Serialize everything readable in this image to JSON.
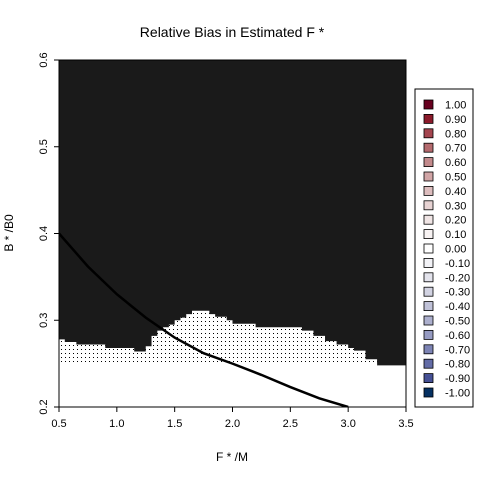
{
  "chart_data": {
    "type": "heatmap",
    "title": "Relative Bias in Estimated F *",
    "xlabel": "F * /M",
    "ylabel": "B * /B0",
    "xlim": [
      0.5,
      3.5
    ],
    "ylim": [
      0.2,
      0.6
    ],
    "x_ticks": [
      0.5,
      1.0,
      1.5,
      2.0,
      2.5,
      3.0,
      3.5
    ],
    "x_tick_labels": [
      "0.5",
      "1.0",
      "1.5",
      "2.0",
      "2.5",
      "3.0",
      "3.5"
    ],
    "y_ticks": [
      0.2,
      0.3,
      0.4,
      0.5,
      0.6
    ],
    "y_tick_labels": [
      "0.2",
      "0.3",
      "0.4",
      "0.5",
      "0.6"
    ],
    "legend": {
      "placement": "right",
      "entries": [
        {
          "label": "1.00",
          "color": "#67001F"
        },
        {
          "label": "0.90",
          "color": "#8B1A2B"
        },
        {
          "label": "0.80",
          "color": "#A4454F"
        },
        {
          "label": "0.70",
          "color": "#B46A6E"
        },
        {
          "label": "0.60",
          "color": "#C38A8C"
        },
        {
          "label": "0.50",
          "color": "#D1A5A6"
        },
        {
          "label": "0.40",
          "color": "#DDBDBE"
        },
        {
          "label": "0.30",
          "color": "#E7D3D3"
        },
        {
          "label": "0.20",
          "color": "#F0E5E5"
        },
        {
          "label": "0.10",
          "color": "#F8F3F3"
        },
        {
          "label": "0.00",
          "color": "#FFFFFF"
        },
        {
          "label": "-0.10",
          "color": "#F2F2F6"
        },
        {
          "label": "-0.20",
          "color": "#E3E3EC"
        },
        {
          "label": "-0.30",
          "color": "#D2D3E2"
        },
        {
          "label": "-0.40",
          "color": "#C0C2D8"
        },
        {
          "label": "-0.50",
          "color": "#ACAFCD"
        },
        {
          "label": "-0.60",
          "color": "#969BC2"
        },
        {
          "label": "-0.70",
          "color": "#7D84B5"
        },
        {
          "label": "-0.80",
          "color": "#636CA6"
        },
        {
          "label": "-0.90",
          "color": "#465195"
        },
        {
          "label": "-1.00",
          "color": "#053061"
        }
      ]
    },
    "regions": {
      "background_color": "#1A1A1A",
      "white_region_color": "#FFFFFF",
      "white_region_upper_boundary": [
        {
          "x_from": 0.5,
          "x_to": 0.6,
          "y": 0.25
        },
        {
          "x_from": 0.6,
          "x_to": 3.25,
          "y": 0.25
        },
        {
          "x_from": 3.25,
          "x_to": 3.5,
          "y": 0.248
        }
      ],
      "dotted_region_upper_boundary": [
        {
          "x_from": 0.5,
          "x_to": 0.55,
          "y": 0.278
        },
        {
          "x_from": 0.55,
          "x_to": 0.65,
          "y": 0.275
        },
        {
          "x_from": 0.65,
          "x_to": 0.9,
          "y": 0.272
        },
        {
          "x_from": 0.9,
          "x_to": 1.15,
          "y": 0.268
        },
        {
          "x_from": 1.15,
          "x_to": 1.25,
          "y": 0.264
        },
        {
          "x_from": 1.25,
          "x_to": 1.3,
          "y": 0.27
        },
        {
          "x_from": 1.3,
          "x_to": 1.35,
          "y": 0.282
        },
        {
          "x_from": 1.35,
          "x_to": 1.4,
          "y": 0.288
        },
        {
          "x_from": 1.4,
          "x_to": 1.45,
          "y": 0.292
        },
        {
          "x_from": 1.45,
          "x_to": 1.5,
          "y": 0.295
        },
        {
          "x_from": 1.5,
          "x_to": 1.55,
          "y": 0.3
        },
        {
          "x_from": 1.55,
          "x_to": 1.6,
          "y": 0.303
        },
        {
          "x_from": 1.6,
          "x_to": 1.65,
          "y": 0.307
        },
        {
          "x_from": 1.65,
          "x_to": 1.8,
          "y": 0.311
        },
        {
          "x_from": 1.8,
          "x_to": 1.85,
          "y": 0.307
        },
        {
          "x_from": 1.85,
          "x_to": 1.95,
          "y": 0.304
        },
        {
          "x_from": 1.95,
          "x_to": 2.0,
          "y": 0.3
        },
        {
          "x_from": 2.0,
          "x_to": 2.2,
          "y": 0.296
        },
        {
          "x_from": 2.2,
          "x_to": 2.6,
          "y": 0.292
        },
        {
          "x_from": 2.6,
          "x_to": 2.7,
          "y": 0.288
        },
        {
          "x_from": 2.7,
          "x_to": 2.8,
          "y": 0.282
        },
        {
          "x_from": 2.8,
          "x_to": 2.9,
          "y": 0.276
        },
        {
          "x_from": 2.9,
          "x_to": 3.0,
          "y": 0.272
        },
        {
          "x_from": 3.0,
          "x_to": 3.05,
          "y": 0.268
        },
        {
          "x_from": 3.05,
          "x_to": 3.15,
          "y": 0.265
        },
        {
          "x_from": 3.15,
          "x_to": 3.25,
          "y": 0.255
        }
      ]
    },
    "curve": {
      "color": "#000000",
      "points": [
        {
          "x": 0.5,
          "y": 0.4
        },
        {
          "x": 0.75,
          "y": 0.362
        },
        {
          "x": 1.0,
          "y": 0.33
        },
        {
          "x": 1.25,
          "y": 0.303
        },
        {
          "x": 1.5,
          "y": 0.28
        },
        {
          "x": 1.75,
          "y": 0.262
        },
        {
          "x": 2.0,
          "y": 0.25
        },
        {
          "x": 2.25,
          "y": 0.237
        },
        {
          "x": 2.5,
          "y": 0.223
        },
        {
          "x": 2.75,
          "y": 0.21
        },
        {
          "x": 3.0,
          "y": 0.2
        }
      ]
    }
  }
}
